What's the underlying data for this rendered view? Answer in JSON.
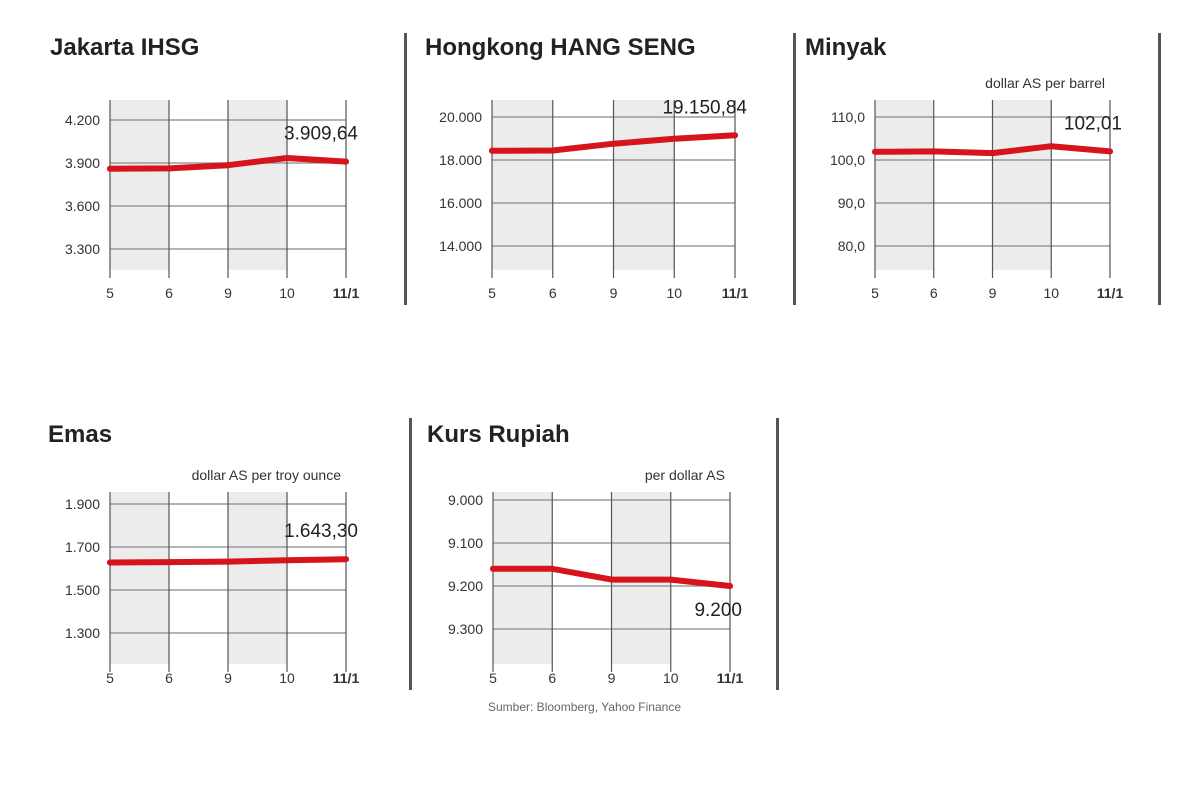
{
  "source_note": "Sumber: Bloomberg, Yahoo Finance",
  "chart_data": [
    {
      "type": "line",
      "title": "Jakarta IHSG",
      "unit": "",
      "categories": [
        "5",
        "6",
        "9",
        "10",
        "11/1"
      ],
      "values": [
        3860,
        3862,
        3885,
        3935,
        3909.64
      ],
      "yticks": [
        "4.200",
        "3.900",
        "3.600",
        "3.300"
      ],
      "ytick_values": [
        4200,
        3900,
        3600,
        3300
      ],
      "ylim": [
        3300,
        4200
      ],
      "last_label": "3.909,64",
      "label_position": "above",
      "shading": "alternating-columns",
      "grid": true,
      "line_color": "#d7141e"
    },
    {
      "type": "line",
      "title": "Hongkong HANG SENG",
      "unit": "",
      "categories": [
        "5",
        "6",
        "9",
        "10",
        "11/1"
      ],
      "values": [
        18430,
        18440,
        18760,
        18990,
        19150.84
      ],
      "yticks": [
        "20.000",
        "18.000",
        "16.000",
        "14.000"
      ],
      "ytick_values": [
        20000,
        18000,
        16000,
        14000
      ],
      "ylim": [
        14000,
        20000
      ],
      "last_label": "19.150,84",
      "label_position": "above",
      "shading": "alternating-columns",
      "grid": true,
      "line_color": "#d7141e"
    },
    {
      "type": "line",
      "title": "Minyak",
      "unit": "dollar AS per barrel",
      "categories": [
        "5",
        "6",
        "9",
        "10",
        "11/1"
      ],
      "values": [
        101.9,
        102.0,
        101.6,
        103.2,
        102.01
      ],
      "yticks": [
        "110,0",
        "100,0",
        "90,0",
        "80,0"
      ],
      "ytick_values": [
        110,
        100,
        90,
        80
      ],
      "ylim": [
        80,
        110
      ],
      "last_label": "102,01",
      "label_position": "above",
      "shading": "alternating-columns",
      "grid": true,
      "line_color": "#d7141e"
    },
    {
      "type": "line",
      "title": "Emas",
      "unit": "dollar AS per troy ounce",
      "categories": [
        "5",
        "6",
        "9",
        "10",
        "11/1"
      ],
      "values": [
        1628,
        1630,
        1632,
        1638,
        1643.3
      ],
      "yticks": [
        "1.900",
        "1.700",
        "1.500",
        "1.300"
      ],
      "ytick_values": [
        1900,
        1700,
        1500,
        1300
      ],
      "ylim": [
        1300,
        1900
      ],
      "last_label": "1.643,30",
      "label_position": "above",
      "shading": "alternating-columns",
      "grid": true,
      "line_color": "#d7141e"
    },
    {
      "type": "line",
      "title": "Kurs Rupiah",
      "unit": "per dollar AS",
      "categories": [
        "5",
        "6",
        "9",
        "10",
        "11/1"
      ],
      "values": [
        9160,
        9160,
        9185,
        9185,
        9200
      ],
      "yticks": [
        "9.000",
        "9.100",
        "9.200",
        "9.300"
      ],
      "ytick_values": [
        9000,
        9100,
        9200,
        9300
      ],
      "ylim": [
        9000,
        9300
      ],
      "reversed": true,
      "last_label": "9.200",
      "label_position": "below",
      "shading": "alternating-columns",
      "grid": true,
      "line_color": "#d7141e"
    }
  ]
}
